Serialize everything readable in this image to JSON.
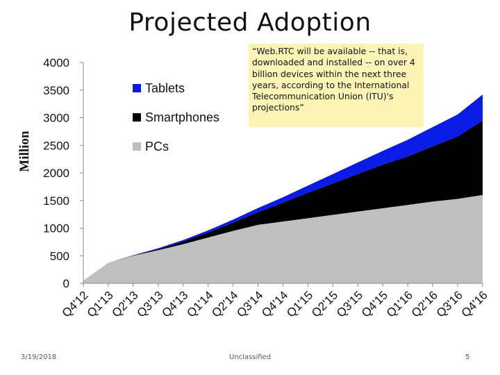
{
  "slide": {
    "title": "Projected Adoption",
    "callout": "“Web.RTC will be available -- that is, downloaded and installed -- on over 4 billion devices within the next three years, according to the International Telecommunication Union (ITU)'s projections”",
    "footer_date": "3/19/2018",
    "footer_classification": "Unclassified",
    "footer_page": "5"
  },
  "chart_data": {
    "type": "area",
    "stacked": true,
    "title": "",
    "xlabel": "",
    "ylabel": "Million",
    "ylim": [
      0,
      4000
    ],
    "yticks": [
      0,
      500,
      1000,
      1500,
      2000,
      2500,
      3000,
      3500,
      4000
    ],
    "categories": [
      "Q4'12",
      "Q1'13",
      "Q2'13",
      "Q3'13",
      "Q4'13",
      "Q1'14",
      "Q2'14",
      "Q3'14",
      "Q4'14",
      "Q1'15",
      "Q2'15",
      "Q3'15",
      "Q4'15",
      "Q1'16",
      "Q2'16",
      "Q3'16",
      "Q4'16"
    ],
    "grid": false,
    "legend_position": "top-left",
    "series": [
      {
        "name": "PCs",
        "color": "#c0c0c0",
        "values": [
          50,
          370,
          500,
          600,
          710,
          830,
          950,
          1060,
          1120,
          1180,
          1240,
          1300,
          1360,
          1420,
          1480,
          1530,
          1600
        ]
      },
      {
        "name": "Smartphones",
        "color": "#000000",
        "values": [
          0,
          0,
          5,
          20,
          50,
          90,
          150,
          230,
          340,
          460,
          570,
          680,
          790,
          880,
          1000,
          1130,
          1350
        ]
      },
      {
        "name": "Tablets",
        "color": "#0a1be6",
        "values": [
          0,
          0,
          5,
          15,
          25,
          40,
          55,
          75,
          100,
          130,
          170,
          210,
          250,
          300,
          350,
          400,
          470
        ]
      }
    ]
  }
}
